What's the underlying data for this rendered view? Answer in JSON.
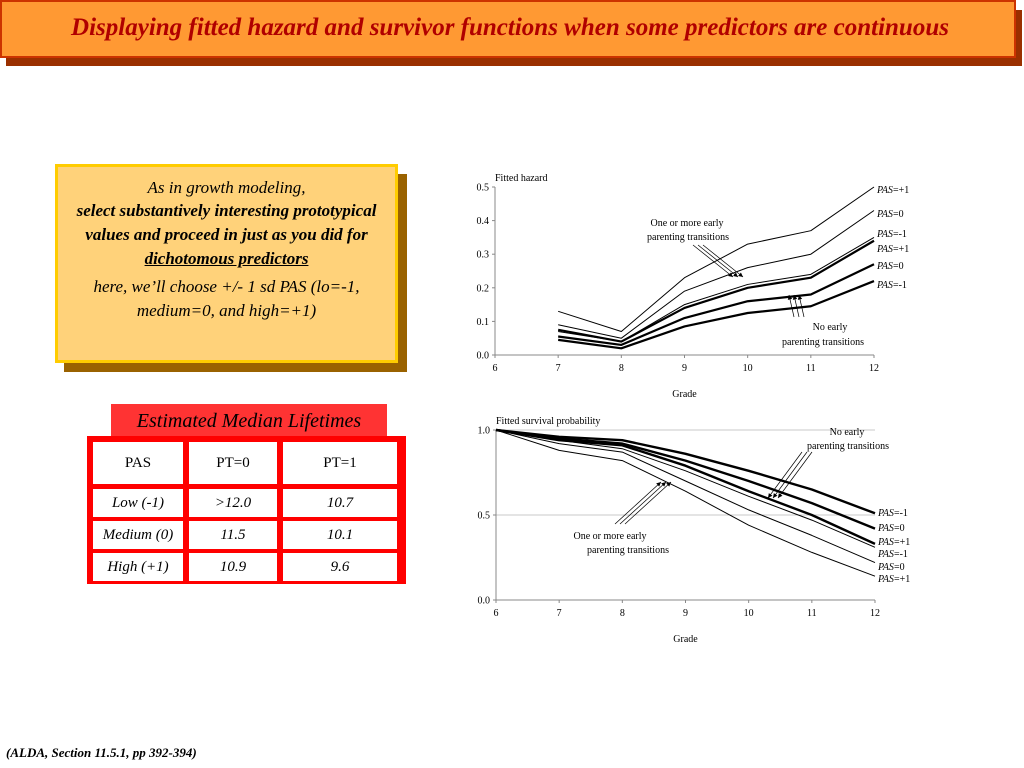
{
  "title": "Displaying fitted hazard and survivor functions when some predictors are continuous",
  "note": {
    "line1": "As in growth modeling,",
    "line2": "select substantively interesting prototypical values and proceed in just as you did for",
    "line3": "dichotomous predictors",
    "line4": "here, we’ll choose +/- 1 sd PAS (lo=-1, medium=0, and high=+1)"
  },
  "table": {
    "caption": "Estimated Median Lifetimes",
    "headers": [
      "PAS",
      "PT=0",
      "PT=1"
    ],
    "rows": [
      [
        "Low (-1)",
        ">12.0",
        "10.7"
      ],
      [
        "Medium (0)",
        "11.5",
        "10.1"
      ],
      [
        "High (+1)",
        "10.9",
        "9.6"
      ]
    ]
  },
  "footer": "(ALDA, Section 11.5.1, pp 392-394)",
  "chart_data": [
    {
      "type": "line",
      "title": "Fitted hazard",
      "xlabel": "Grade",
      "ylabel": "",
      "x": [
        7,
        8,
        9,
        10,
        11,
        12
      ],
      "xlim": [
        6,
        12
      ],
      "ylim": [
        0,
        0.5
      ],
      "xticks": [
        "6",
        "7",
        "8",
        "9",
        "10",
        "11",
        "12"
      ],
      "yticks": [
        "0.0",
        "0.1",
        "0.2",
        "0.3",
        "0.4",
        "0.5"
      ],
      "grid": false,
      "series": [
        {
          "name": "PAS=+1",
          "group": "One or more early parenting transitions",
          "values": [
            0.13,
            0.07,
            0.23,
            0.33,
            0.37,
            0.5
          ]
        },
        {
          "name": "PAS=0",
          "group": "One or more early parenting transitions",
          "values": [
            0.09,
            0.05,
            0.19,
            0.26,
            0.3,
            0.43
          ]
        },
        {
          "name": "PAS=-1",
          "group": "One or more early parenting transitions",
          "values": [
            0.07,
            0.04,
            0.15,
            0.21,
            0.24,
            0.35
          ]
        },
        {
          "name": "PAS=+1",
          "group": "No early parenting transitions",
          "values": [
            0.075,
            0.04,
            0.14,
            0.2,
            0.23,
            0.34
          ]
        },
        {
          "name": "PAS=0",
          "group": "No early parenting transitions",
          "values": [
            0.055,
            0.03,
            0.11,
            0.16,
            0.18,
            0.27
          ]
        },
        {
          "name": "PAS=-1",
          "group": "No early parenting transitions",
          "values": [
            0.045,
            0.02,
            0.085,
            0.125,
            0.145,
            0.22
          ]
        }
      ],
      "annotations": [
        "One or more early",
        "parenting transitions",
        "No early",
        "parenting transitions"
      ]
    },
    {
      "type": "line",
      "title": "Fitted survival probability",
      "xlabel": "Grade",
      "ylabel": "",
      "x": [
        6,
        7,
        8,
        9,
        10,
        11,
        12
      ],
      "xlim": [
        6,
        12
      ],
      "ylim": [
        0,
        1.0
      ],
      "xticks": [
        "6",
        "7",
        "8",
        "9",
        "10",
        "11",
        "12"
      ],
      "yticks": [
        "0.0",
        "0.5",
        "1.0"
      ],
      "grid": true,
      "series": [
        {
          "name": "PAS=-1",
          "group": "No early parenting transitions",
          "values": [
            1.0,
            0.96,
            0.94,
            0.86,
            0.76,
            0.65,
            0.51
          ]
        },
        {
          "name": "PAS=0",
          "group": "No early parenting transitions",
          "values": [
            1.0,
            0.95,
            0.92,
            0.82,
            0.7,
            0.57,
            0.42
          ]
        },
        {
          "name": "PAS=+1",
          "group": "No early parenting transitions",
          "values": [
            1.0,
            0.94,
            0.91,
            0.79,
            0.64,
            0.5,
            0.33
          ]
        },
        {
          "name": "PAS=-1",
          "group": "One or more early parenting transitions",
          "values": [
            1.0,
            0.94,
            0.89,
            0.76,
            0.61,
            0.47,
            0.31
          ]
        },
        {
          "name": "PAS=0",
          "group": "One or more early parenting transitions",
          "values": [
            1.0,
            0.92,
            0.87,
            0.7,
            0.53,
            0.38,
            0.22
          ]
        },
        {
          "name": "PAS=+1",
          "group": "One or more early parenting transitions",
          "values": [
            1.0,
            0.88,
            0.82,
            0.64,
            0.44,
            0.28,
            0.14
          ]
        }
      ],
      "annotations": [
        "No early",
        "parenting transitions",
        "One or more early",
        "parenting transitions"
      ]
    }
  ]
}
